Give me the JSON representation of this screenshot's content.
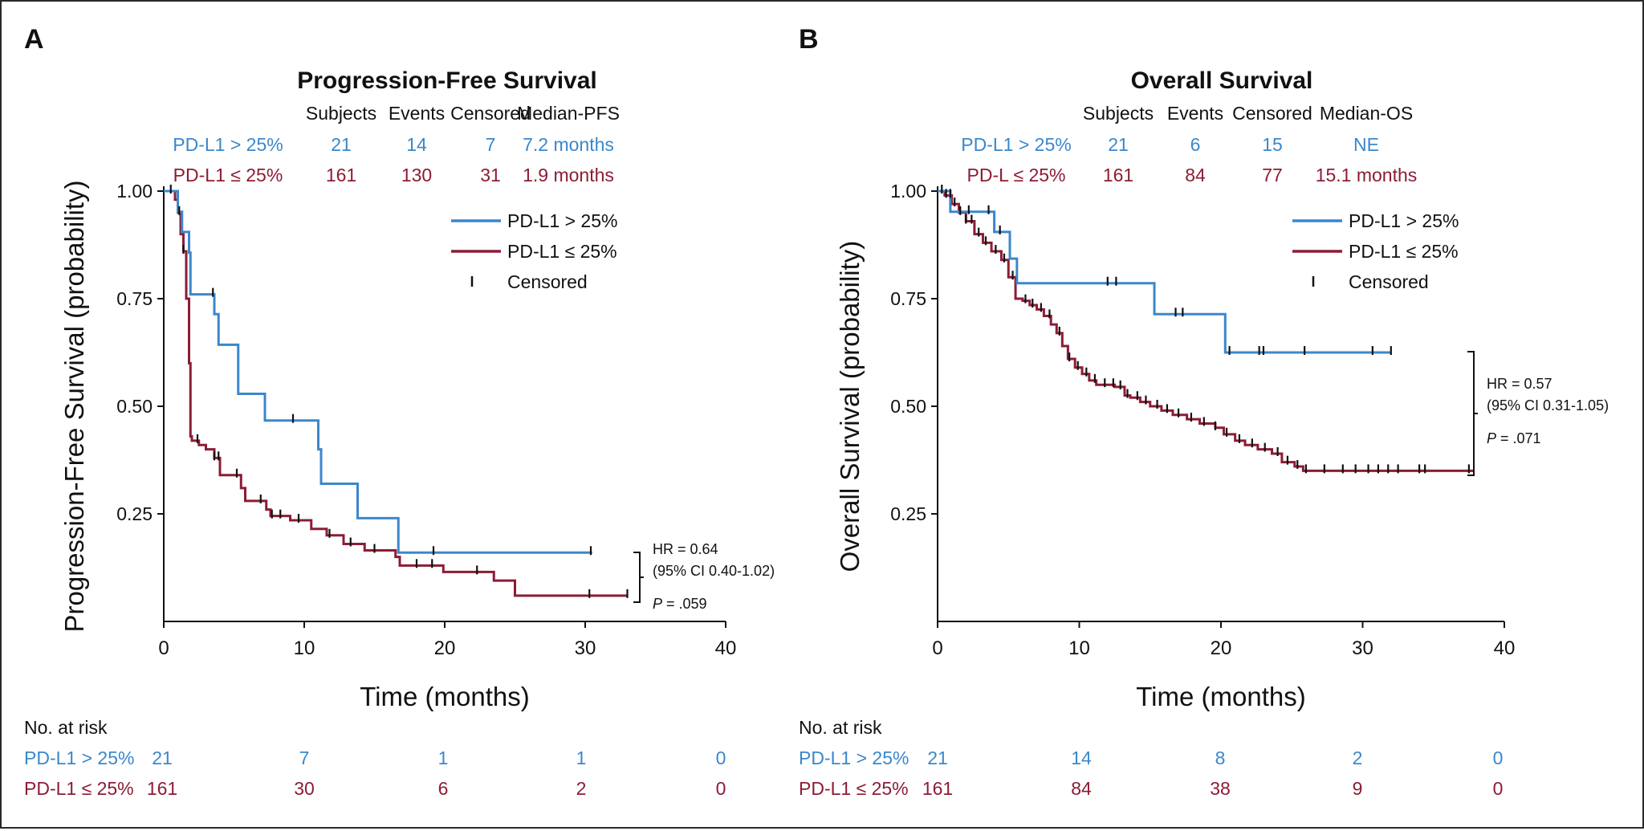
{
  "colors": {
    "high": "#3b87cc",
    "low": "#8c1c35",
    "ink": "#111111"
  },
  "chart_data": [
    {
      "panel_letter": "A",
      "type": "line",
      "subtype": "kaplan-meier",
      "title": "Progression-Free Survival",
      "ylabel": "Progression-Free Survival (probability)",
      "xlabel": "Time (months)",
      "xlim": [
        0,
        40
      ],
      "ylim": [
        0,
        1
      ],
      "xticks": [
        "0",
        "10",
        "20",
        "30",
        "40"
      ],
      "yticks": [
        "1.00",
        "0.75",
        "0.50",
        "0.25"
      ],
      "summary_headers": [
        "Subjects",
        "Events",
        "Censored",
        "Median-PFS"
      ],
      "summary_rows": [
        {
          "label": "PD-L1 > 25%",
          "color_key": "high",
          "values": [
            "21",
            "14",
            "7",
            "7.2 months"
          ]
        },
        {
          "label": "PD-L1 ≤ 25%",
          "color_key": "low",
          "values": [
            "161",
            "130",
            "31",
            "1.9 months"
          ]
        }
      ],
      "legend": [
        "PD-L1 > 25%",
        "PD-L1 ≤ 25%",
        "Censored"
      ],
      "annotation": {
        "hr": "HR = 0.64",
        "ci": "(95% CI 0.40-1.02)",
        "p_label": "P",
        "p_value": " = .059"
      },
      "risk_title": "No. at risk",
      "risk_rows": [
        {
          "label": "PD-L1 > 25%",
          "color_key": "high",
          "values": [
            "21",
            "7",
            "1",
            "1",
            "0"
          ]
        },
        {
          "label": "PD-L1 ≤ 25%",
          "color_key": "low",
          "values": [
            "161",
            "30",
            "6",
            "2",
            "0"
          ]
        }
      ],
      "series": [
        {
          "name": "PD-L1 > 25%",
          "color_key": "high",
          "steps": [
            [
              0,
              1.0
            ],
            [
              1.0,
              0.952
            ],
            [
              1.3,
              0.905
            ],
            [
              1.8,
              0.857
            ],
            [
              1.9,
              0.76
            ],
            [
              3.6,
              0.714
            ],
            [
              3.9,
              0.643
            ],
            [
              5.3,
              0.529
            ],
            [
              7.2,
              0.467
            ],
            [
              11.0,
              0.4
            ],
            [
              11.2,
              0.32
            ],
            [
              13.8,
              0.24
            ],
            [
              16.7,
              0.16
            ],
            [
              30.5,
              0.16
            ]
          ],
          "censor_times": [
            3.5,
            9.2,
            19.2,
            30.4
          ]
        },
        {
          "name": "PD-L1 ≤ 25%",
          "color_key": "low",
          "steps": [
            [
              0,
              1.0
            ],
            [
              0.8,
              0.98
            ],
            [
              1.0,
              0.95
            ],
            [
              1.2,
              0.9
            ],
            [
              1.4,
              0.86
            ],
            [
              1.6,
              0.75
            ],
            [
              1.8,
              0.6
            ],
            [
              1.9,
              0.43
            ],
            [
              2.0,
              0.42
            ],
            [
              2.5,
              0.41
            ],
            [
              3.0,
              0.4
            ],
            [
              3.6,
              0.38
            ],
            [
              4.0,
              0.34
            ],
            [
              5.5,
              0.31
            ],
            [
              5.8,
              0.28
            ],
            [
              7.3,
              0.26
            ],
            [
              7.6,
              0.245
            ],
            [
              9.0,
              0.235
            ],
            [
              10.5,
              0.215
            ],
            [
              11.6,
              0.2
            ],
            [
              12.8,
              0.18
            ],
            [
              14.3,
              0.165
            ],
            [
              16.5,
              0.15
            ],
            [
              16.8,
              0.13
            ],
            [
              19.9,
              0.115
            ],
            [
              23.5,
              0.095
            ],
            [
              25.0,
              0.06
            ],
            [
              33.0,
              0.06
            ]
          ],
          "censor_times": [
            0.5,
            1.1,
            1.4,
            2.4,
            3.6,
            3.9,
            5.2,
            6.9,
            7.7,
            8.3,
            9.6,
            11.8,
            13.3,
            15.0,
            18.0,
            19.1,
            22.3,
            30.3,
            33.0
          ]
        }
      ]
    },
    {
      "panel_letter": "B",
      "type": "line",
      "subtype": "kaplan-meier",
      "title": "Overall Survival",
      "ylabel": "Overall Survival (probability)",
      "xlabel": "Time (months)",
      "xlim": [
        0,
        40
      ],
      "ylim": [
        0,
        1
      ],
      "xticks": [
        "0",
        "10",
        "20",
        "30",
        "40"
      ],
      "yticks": [
        "1.00",
        "0.75",
        "0.50",
        "0.25"
      ],
      "summary_headers": [
        "Subjects",
        "Events",
        "Censored",
        "Median-OS"
      ],
      "summary_rows": [
        {
          "label": "PD-L1 > 25%",
          "color_key": "high",
          "values": [
            "21",
            "6",
            "15",
            "NE"
          ]
        },
        {
          "label": "PD-L ≤ 25%",
          "color_key": "low",
          "values": [
            "161",
            "84",
            "77",
            "15.1 months"
          ]
        }
      ],
      "legend": [
        "PD-L1 > 25%",
        "PD-L1 ≤ 25%",
        "Censored"
      ],
      "annotation": {
        "hr": "HR = 0.57",
        "ci": "(95% CI 0.31-1.05)",
        "p_label": "P",
        "p_value": " = .071"
      },
      "risk_title": "No. at risk",
      "risk_rows": [
        {
          "label": "PD-L1 > 25%",
          "color_key": "high",
          "values": [
            "21",
            "14",
            "8",
            "2",
            "0"
          ]
        },
        {
          "label": "PD-L1 ≤ 25%",
          "color_key": "low",
          "values": [
            "161",
            "84",
            "38",
            "9",
            "0"
          ]
        }
      ],
      "series": [
        {
          "name": "PD-L1 > 25%",
          "color_key": "high",
          "steps": [
            [
              0,
              1.0
            ],
            [
              0.9,
              0.952
            ],
            [
              4.0,
              0.905
            ],
            [
              5.1,
              0.843
            ],
            [
              5.6,
              0.786
            ],
            [
              15.3,
              0.714
            ],
            [
              20.3,
              0.625
            ],
            [
              32.0,
              0.625
            ]
          ],
          "censor_times": [
            2.2,
            3.6,
            4.4,
            12.0,
            12.6,
            16.8,
            17.3,
            20.6,
            22.7,
            23.0,
            25.9,
            30.7,
            32.0
          ]
        },
        {
          "name": "PD-L1 ≤ 25%",
          "color_key": "low",
          "steps": [
            [
              0,
              1.0
            ],
            [
              0.5,
              0.99
            ],
            [
              1.0,
              0.97
            ],
            [
              1.5,
              0.95
            ],
            [
              2.0,
              0.93
            ],
            [
              2.6,
              0.9
            ],
            [
              3.2,
              0.88
            ],
            [
              3.8,
              0.86
            ],
            [
              4.5,
              0.84
            ],
            [
              5.0,
              0.8
            ],
            [
              5.5,
              0.75
            ],
            [
              6.0,
              0.745
            ],
            [
              6.5,
              0.735
            ],
            [
              7.0,
              0.725
            ],
            [
              7.5,
              0.71
            ],
            [
              8.0,
              0.69
            ],
            [
              8.4,
              0.67
            ],
            [
              8.8,
              0.64
            ],
            [
              9.2,
              0.61
            ],
            [
              9.7,
              0.59
            ],
            [
              10.2,
              0.575
            ],
            [
              10.7,
              0.56
            ],
            [
              11.2,
              0.55
            ],
            [
              12.5,
              0.545
            ],
            [
              13.2,
              0.525
            ],
            [
              13.6,
              0.52
            ],
            [
              14.3,
              0.51
            ],
            [
              15.0,
              0.5
            ],
            [
              15.8,
              0.49
            ],
            [
              16.6,
              0.48
            ],
            [
              17.6,
              0.47
            ],
            [
              18.5,
              0.46
            ],
            [
              19.6,
              0.45
            ],
            [
              20.2,
              0.435
            ],
            [
              21.0,
              0.42
            ],
            [
              21.7,
              0.41
            ],
            [
              22.6,
              0.4
            ],
            [
              23.6,
              0.39
            ],
            [
              24.3,
              0.37
            ],
            [
              25.2,
              0.36
            ],
            [
              25.8,
              0.35
            ],
            [
              37.8,
              0.35
            ]
          ],
          "censor_times": [
            0.3,
            0.6,
            0.9,
            1.2,
            1.6,
            2.0,
            2.4,
            2.9,
            3.4,
            4.1,
            4.7,
            5.3,
            6.2,
            6.7,
            7.3,
            7.9,
            8.6,
            9.3,
            9.9,
            10.5,
            11.1,
            11.8,
            12.4,
            12.9,
            13.4,
            14.1,
            14.7,
            15.5,
            16.2,
            17.0,
            17.9,
            18.8,
            19.6,
            20.4,
            21.3,
            22.2,
            23.1,
            24.0,
            24.7,
            25.4,
            26.0,
            27.3,
            28.6,
            29.5,
            30.4,
            31.1,
            31.8,
            32.5,
            34.0,
            34.4,
            37.5
          ]
        }
      ]
    }
  ]
}
